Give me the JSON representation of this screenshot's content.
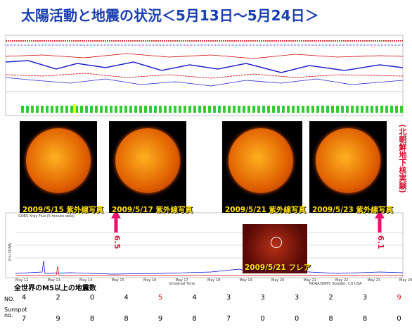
{
  "title": "太陽活動と地震の状況＜5月13日～5月24日＞",
  "photos": [
    {
      "caption": "2009/5/15 紫外線写真"
    },
    {
      "caption": "2009/5/17 紫外線写真"
    },
    {
      "caption": "2009/5/21 紫外線写真"
    },
    {
      "caption": "2009/5/23 紫外線写真"
    }
  ],
  "side_note": "(北朝鮮地下核実験)",
  "earthquakes": [
    {
      "label": "6.5"
    },
    {
      "label": "6.1"
    }
  ],
  "flare_caption": "2009/5/21 フレア",
  "xray": {
    "title": "GOES Xray Flux (5 minute data)",
    "x_label": "Universal Time",
    "y_label": "Watts m-2",
    "dates": [
      "May 12",
      "May 13",
      "May 14",
      "May 15",
      "May 16",
      "May 17",
      "May 18",
      "May 19",
      "May 20",
      "May 21",
      "May 22",
      "May 23",
      "May 24"
    ],
    "credit": "NOAA/SWPC Boulder, CO USA"
  },
  "table": {
    "title": "全世界のM5以上の地震数",
    "row_labels": [
      "NO.",
      "Sunspot no."
    ],
    "quake_counts": [
      4,
      2,
      0,
      4,
      5,
      4,
      3,
      3,
      3,
      2,
      3,
      9
    ],
    "quake_colors": [
      "#000",
      "#000",
      "#000",
      "#000",
      "#e0101a",
      "#000",
      "#000",
      "#000",
      "#000",
      "#000",
      "#000",
      "#e0101a"
    ],
    "sunspots": [
      7,
      9,
      8,
      8,
      9,
      8,
      7,
      0,
      0,
      8,
      8,
      0
    ]
  }
}
